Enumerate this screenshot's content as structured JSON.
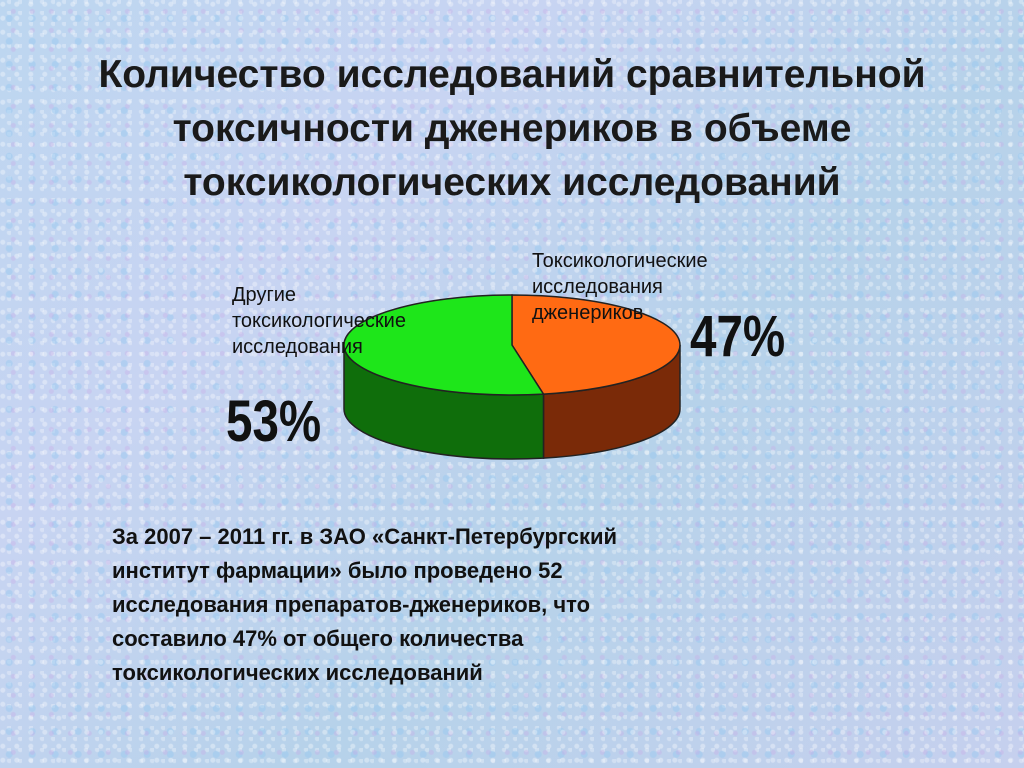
{
  "slide": {
    "title_lines": [
      "Количество исследований сравнительной",
      "токсичности дженериков в объеме",
      "токсикологических исследований"
    ],
    "note_lines": [
      "За 2007 – 2011 гг. в ЗАО «Санкт-Петербургский",
      "институт фармации» было проведено 52",
      "исследования препаратов-дженериков, что",
      "составило 47% от общего количества",
      "токсикологических исследований"
    ]
  },
  "chart_data": {
    "type": "pie",
    "title": "",
    "slices": [
      {
        "label_lines": [
          "Токсикологические",
          "исследования",
          "дженериков"
        ],
        "value": 47,
        "value_label": "47%",
        "color": "#ff6a13",
        "side_color": "#7a2a08"
      },
      {
        "label_lines": [
          "Другие",
          "токсикологические",
          "исследования"
        ],
        "value": 53,
        "value_label": "53%",
        "color": "#1ee61a",
        "side_color": "#0f6e0b"
      }
    ]
  }
}
